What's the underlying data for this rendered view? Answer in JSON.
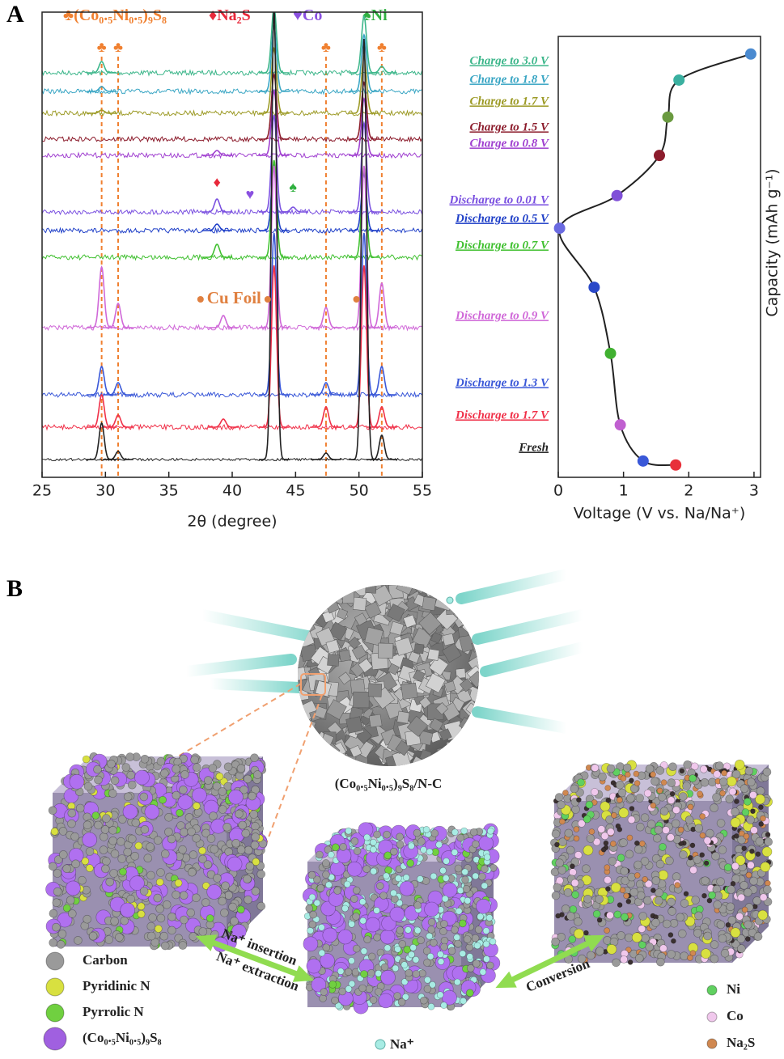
{
  "panel_labels": [
    "A",
    "B"
  ],
  "phase_legend": [
    {
      "symbol": "♣",
      "text": "(Co₀.₅Ni₀.₅)₉S₈",
      "color": "#f08030"
    },
    {
      "symbol": "♦",
      "text": "Na₂S",
      "color": "#e8283a"
    },
    {
      "symbol": "♥",
      "text": "Co",
      "color": "#8a50e0"
    },
    {
      "symbol": "♠",
      "text": "Ni",
      "color": "#30b040"
    }
  ],
  "chart_data": [
    {
      "type": "xrd",
      "xlabel": "2θ (degree)",
      "xlim": [
        25,
        55
      ],
      "xticks": [
        25,
        30,
        35,
        40,
        45,
        50,
        55
      ],
      "reference_lines": [
        29.7,
        31.0,
        47.4,
        51.8
      ],
      "reference_color": "#f08030",
      "annotations": [
        {
          "text": "♣",
          "x": 29.7,
          "color": "#f08030"
        },
        {
          "text": "♣",
          "x": 31.0,
          "color": "#f08030"
        },
        {
          "text": "♣",
          "x": 47.4,
          "color": "#f08030"
        },
        {
          "text": "♣",
          "x": 51.8,
          "color": "#f08030"
        },
        {
          "text": "♦",
          "x": 38.8,
          "color": "#e8283a"
        },
        {
          "text": "♥",
          "x": 41.4,
          "color": "#8a50e0"
        },
        {
          "text": "♠",
          "x": 44.8,
          "color": "#30b040"
        }
      ],
      "cu_foil": {
        "text": "Cu Foil",
        "x": [
          37.5,
          42.8,
          49.8
        ],
        "color": "#e08040"
      },
      "series": [
        {
          "name": "Charge to 3.0 V",
          "color": "#3cb68a",
          "peaks": [
            [
              29.7,
              14
            ],
            [
              43.3,
              80
            ],
            [
              50.4,
              70
            ],
            [
              51.8,
              8
            ]
          ]
        },
        {
          "name": "Charge to 1.8 V",
          "color": "#3aa6c4",
          "peaks": [
            [
              29.7,
              6
            ],
            [
              43.3,
              80
            ],
            [
              50.4,
              70
            ]
          ]
        },
        {
          "name": "Charge to 1.7 V",
          "color": "#9c9a25",
          "peaks": [
            [
              29.7,
              4
            ],
            [
              43.3,
              80
            ],
            [
              50.4,
              70
            ]
          ]
        },
        {
          "name": "Charge to 1.5 V",
          "color": "#8c1c2c",
          "peaks": [
            [
              43.3,
              80
            ],
            [
              50.4,
              70
            ]
          ]
        },
        {
          "name": "Charge to 0.8 V",
          "color": "#a040d0",
          "peaks": [
            [
              38.8,
              6
            ],
            [
              43.3,
              80
            ],
            [
              50.4,
              70
            ]
          ]
        },
        {
          "name": "Discharge to 0.01 V",
          "color": "#7a50e0",
          "peaks": [
            [
              38.8,
              16
            ],
            [
              43.3,
              120
            ],
            [
              44.8,
              6
            ],
            [
              50.4,
              110
            ]
          ]
        },
        {
          "name": "Discharge to 0.5 V",
          "color": "#2040c8",
          "peaks": [
            [
              38.8,
              8
            ],
            [
              43.3,
              80
            ],
            [
              50.4,
              70
            ]
          ]
        },
        {
          "name": "Discharge to 0.7 V",
          "color": "#40c030",
          "peaks": [
            [
              38.8,
              16
            ],
            [
              43.3,
              120
            ],
            [
              50.4,
              110
            ]
          ]
        },
        {
          "name": "Discharge to 0.9 V",
          "color": "#d068d8",
          "peaks": [
            [
              29.7,
              75
            ],
            [
              31.0,
              30
            ],
            [
              39.3,
              15
            ],
            [
              43.3,
              200
            ],
            [
              47.4,
              25
            ],
            [
              50.4,
              200
            ],
            [
              51.8,
              55
            ]
          ]
        },
        {
          "name": "Discharge to 1.3 V",
          "color": "#3a58d8",
          "peaks": [
            [
              29.7,
              35
            ],
            [
              31.0,
              15
            ],
            [
              43.3,
              200
            ],
            [
              47.4,
              15
            ],
            [
              50.4,
              200
            ],
            [
              51.8,
              35
            ]
          ]
        },
        {
          "name": "Discharge to 1.7 V",
          "color": "#f03048",
          "peaks": [
            [
              29.7,
              40
            ],
            [
              31.0,
              15
            ],
            [
              39.3,
              10
            ],
            [
              43.3,
              200
            ],
            [
              47.4,
              25
            ],
            [
              50.4,
              200
            ],
            [
              51.8,
              25
            ]
          ]
        },
        {
          "name": "Fresh",
          "color": "#222222",
          "peaks": [
            [
              29.7,
              45
            ],
            [
              31.0,
              10
            ],
            [
              43.3,
              560
            ],
            [
              47.4,
              8
            ],
            [
              50.4,
              520
            ],
            [
              51.8,
              30
            ]
          ]
        }
      ]
    },
    {
      "type": "line",
      "xlabel": "Voltage (V vs. Na/Na⁺)",
      "ylabel": "Capacity (mAh g⁻¹)",
      "xlim": [
        0,
        3.1
      ],
      "xticks": [
        0,
        1,
        2,
        3
      ],
      "ylim": [
        0,
        100
      ],
      "x": [
        1.8,
        1.3,
        0.95,
        0.8,
        0.55,
        0.02,
        0.9,
        1.55,
        1.68,
        1.85,
        2.95
      ],
      "values": [
        2.8,
        3.7,
        11.9,
        28.1,
        43.1,
        56.5,
        63.9,
        73.0,
        81.7,
        90.1,
        96.0
      ],
      "colors": [
        "#e8303a",
        "#3a58d8",
        "#c060d0",
        "#40b030",
        "#2a48c8",
        "#6a6ae0",
        "#8050d8",
        "#8c1c2c",
        "#6a9a40",
        "#3ab0a0",
        "#4a8ad0"
      ]
    }
  ],
  "illustration": {
    "material_label": "(Co₀.₅Ni₀.₅)₉S₈/N-C",
    "arrow_labels": [
      "Na⁺ insertion",
      "Na⁺ extraction",
      "Conversion"
    ],
    "left_legend": [
      {
        "text": "Carbon",
        "color": "#9a9a9a"
      },
      {
        "text": "Pyridinic N",
        "color": "#d8e040"
      },
      {
        "text": "Pyrrolic N",
        "color": "#70d040"
      },
      {
        "text": "(Co₀.₅Ni₀.₅)₉S₈",
        "color": "#a060e0"
      }
    ],
    "na_label": {
      "text": "Na⁺",
      "color": "#a8ece4"
    },
    "right_legend": [
      {
        "text": "Ni",
        "color": "#60d060"
      },
      {
        "text": "Co",
        "color": "#f0c8ec"
      },
      {
        "text": "Na₂S",
        "color": "#d08850"
      }
    ]
  }
}
